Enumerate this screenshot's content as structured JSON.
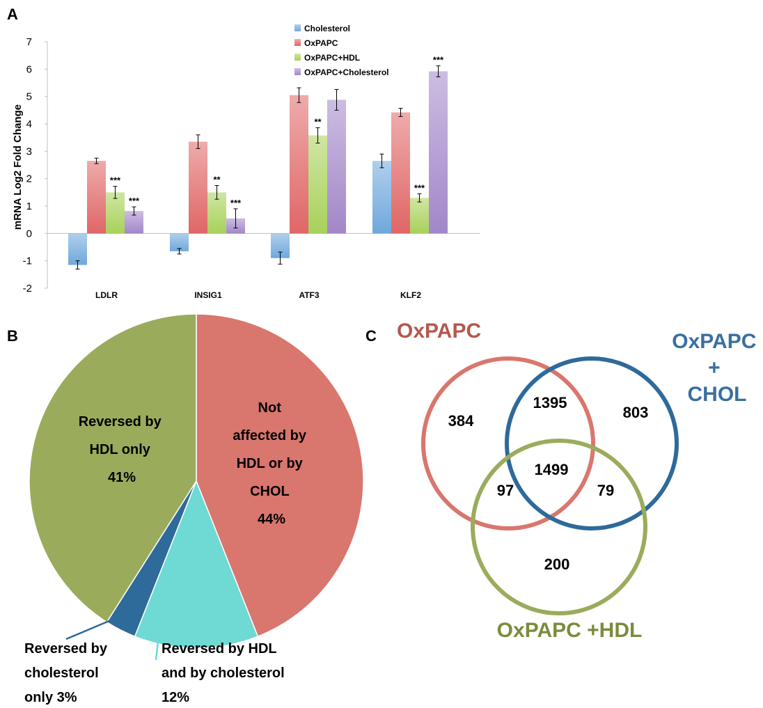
{
  "panels": {
    "a_letter": "A",
    "b_letter": "B",
    "c_letter": "C"
  },
  "colors": {
    "cholesterol": "#6fa8dc",
    "oxpapc": "#e06666",
    "oxpapc_hdl": "#a8d15a",
    "oxpapc_chol": "#a287c9",
    "pie_red": "#d9766d",
    "pie_teal": "#6fd9d4",
    "pie_blue": "#2e6a9a",
    "pie_green": "#9aac5c",
    "venn_red": "#d9766d",
    "venn_blue": "#2e6a9a",
    "venn_green": "#9aac5c",
    "venn_red_text": "#b5574e",
    "venn_blue_text": "#3a6fa0",
    "venn_green_text": "#7a8c3c"
  },
  "chart_data": [
    {
      "type": "bar",
      "ylabel": "mRNA Log2 Fold Change",
      "ylim": [
        -2,
        7
      ],
      "yticks": [
        "-2",
        "-1",
        "0",
        "1",
        "2",
        "3",
        "4",
        "5",
        "6",
        "7"
      ],
      "categories": [
        "LDLR",
        "INSIG1",
        "ATF3",
        "KLF2"
      ],
      "legend_position": "top-center",
      "series": [
        {
          "name": "Cholesterol",
          "values": [
            -1.15,
            -0.65,
            -0.9,
            2.65
          ],
          "errors": [
            0.15,
            0.1,
            0.22,
            0.25
          ],
          "sig": [
            "",
            "",
            "",
            ""
          ]
        },
        {
          "name": "OxPAPC",
          "values": [
            2.65,
            3.35,
            5.05,
            4.42
          ],
          "errors": [
            0.1,
            0.25,
            0.27,
            0.15
          ],
          "sig": [
            "",
            "",
            "",
            ""
          ]
        },
        {
          "name": "OxPAPC+HDL",
          "values": [
            1.5,
            1.5,
            3.58,
            1.3
          ],
          "errors": [
            0.22,
            0.25,
            0.28,
            0.15
          ],
          "sig": [
            "***",
            "**",
            "**",
            "***"
          ]
        },
        {
          "name": "OxPAPC+Cholesterol",
          "values": [
            0.82,
            0.55,
            4.88,
            5.92
          ],
          "errors": [
            0.15,
            0.35,
            0.38,
            0.2
          ],
          "sig": [
            "***",
            "***",
            "",
            "***"
          ]
        }
      ]
    },
    {
      "type": "pie",
      "slices": [
        {
          "label_lines": [
            "Not",
            "affected by",
            "HDL or by",
            "CHOL",
            "44%"
          ],
          "value": 44
        },
        {
          "label_lines": [
            "Reversed by HDL",
            "and by cholesterol",
            "12%"
          ],
          "value": 12
        },
        {
          "label_lines": [
            "Reversed by",
            "cholesterol",
            "only 3%"
          ],
          "value": 3
        },
        {
          "label_lines": [
            "Reversed by",
            "HDL only",
            "41%"
          ],
          "value": 41
        }
      ]
    },
    {
      "type": "venn",
      "sets": {
        "oxpapc": "OxPAPC",
        "oxpapc_chol": [
          "OxPAPC",
          "+",
          "CHOL"
        ],
        "oxpapc_hdl": "OxPAPC +HDL"
      },
      "regions": {
        "oxpapc_only": "384",
        "oxpapc_chol_overlap": "1395",
        "chol_only": "803",
        "all_three": "1499",
        "oxpapc_hdl_overlap": "97",
        "chol_hdl_overlap": "79",
        "hdl_only": "200"
      }
    }
  ]
}
